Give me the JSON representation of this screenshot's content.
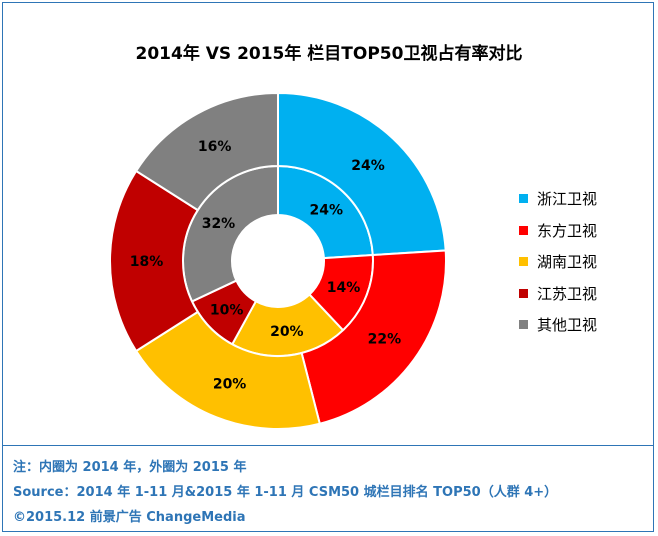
{
  "chart_data": {
    "type": "donut",
    "title": "2014年 VS 2015年 栏目TOP50卫视占有率对比",
    "categories": [
      "浙江卫视",
      "东方卫视",
      "湖南卫视",
      "江苏卫视",
      "其他卫视"
    ],
    "colors": [
      "#00b0f0",
      "#ff0000",
      "#ffc000",
      "#c00000",
      "#808080"
    ],
    "series": [
      {
        "name": "2014",
        "ring": "inner",
        "values": [
          24,
          14,
          20,
          10,
          32
        ]
      },
      {
        "name": "2015",
        "ring": "outer",
        "values": [
          24,
          22,
          20,
          18,
          16
        ]
      }
    ],
    "unit": "%",
    "legend_position": "right"
  },
  "footer": {
    "note1": "注：内圈为 2014 年，外圈为 2015 年",
    "note2": "Source：2014 年 1-11 月&2015 年 1-11 月  CSM50 城栏目排名 TOP50（人群 4+）",
    "note3": "©2015.12  前景广告  ChangeMedia"
  }
}
